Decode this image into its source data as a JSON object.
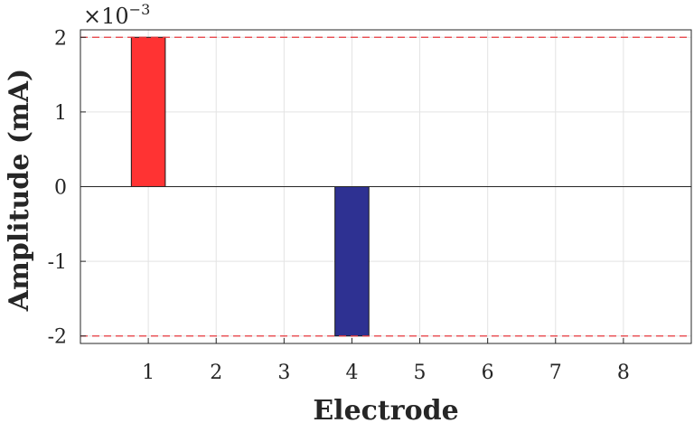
{
  "chart_data": {
    "type": "bar",
    "categories": [
      "1",
      "2",
      "3",
      "4",
      "5",
      "6",
      "7",
      "8"
    ],
    "values": [
      0.002,
      0,
      0,
      -0.002,
      0,
      0,
      0,
      0
    ],
    "bar_colors": [
      "#ff3333",
      "#ff3333",
      "#ff3333",
      "#2e3192",
      "#ff3333",
      "#ff3333",
      "#ff3333",
      "#ff3333"
    ],
    "xlabel": "Electrode",
    "ylabel": "Amplitude (mA)",
    "ylim": [
      -0.0021,
      0.0021
    ],
    "xlim": [
      0,
      9
    ],
    "yticks": [
      -2,
      -1,
      0,
      1,
      2
    ],
    "y_exponent_base": "×10",
    "y_exponent_power": "−3",
    "reference_lines": [
      0.002,
      -0.002
    ],
    "reference_line_color": "#e8383d",
    "grid": true
  }
}
